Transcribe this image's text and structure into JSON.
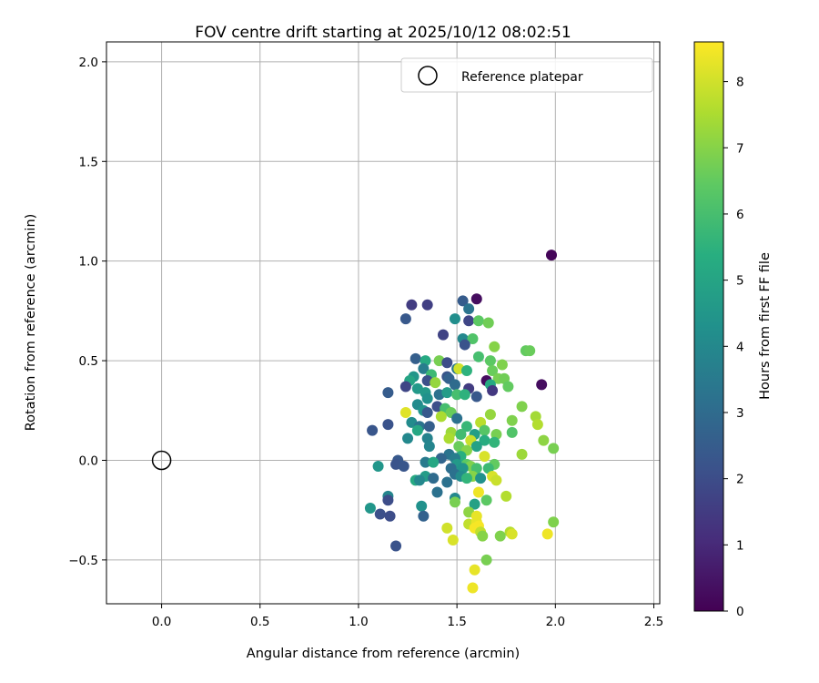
{
  "chart_data": {
    "type": "scatter",
    "title": "FOV centre drift starting at 2025/10/12 08:02:51",
    "xlabel": "Angular distance from reference (arcmin)",
    "ylabel": "Rotation from reference (arcmin)",
    "xlim": [
      -0.28,
      2.53
    ],
    "ylim": [
      -0.72,
      2.1
    ],
    "xticks": [
      0.0,
      0.5,
      1.0,
      1.5,
      2.0,
      2.5
    ],
    "xtick_labels": [
      "0.0",
      "0.5",
      "1.0",
      "1.5",
      "2.0",
      "2.5"
    ],
    "yticks": [
      -0.5,
      0.0,
      0.5,
      1.0,
      1.5,
      2.0
    ],
    "ytick_labels": [
      "−0.5",
      "0.0",
      "0.5",
      "1.0",
      "1.5",
      "2.0"
    ],
    "grid": true,
    "legend": {
      "position": "top-right",
      "entries": [
        "Reference platepar"
      ]
    },
    "reference_point": {
      "x": 0.0,
      "y": 0.0,
      "label": "Reference platepar"
    },
    "colorbar": {
      "label": "Hours from first FF file",
      "colormap": "viridis",
      "range": [
        0,
        8.6
      ],
      "ticks": [
        0,
        1,
        2,
        3,
        4,
        5,
        6,
        7,
        8
      ],
      "tick_labels": [
        "0",
        "1",
        "2",
        "3",
        "4",
        "5",
        "6",
        "7",
        "8"
      ]
    },
    "points": [
      {
        "x": 1.98,
        "y": 1.03,
        "h": 0.1
      },
      {
        "x": 1.6,
        "y": 0.81,
        "h": 0.3
      },
      {
        "x": 1.53,
        "y": 0.8,
        "h": 2.5
      },
      {
        "x": 1.27,
        "y": 0.78,
        "h": 1.5
      },
      {
        "x": 1.35,
        "y": 0.78,
        "h": 1.6
      },
      {
        "x": 1.56,
        "y": 0.76,
        "h": 3.3
      },
      {
        "x": 1.24,
        "y": 0.71,
        "h": 2.4
      },
      {
        "x": 1.49,
        "y": 0.71,
        "h": 4.2
      },
      {
        "x": 1.56,
        "y": 0.7,
        "h": 1.8
      },
      {
        "x": 1.61,
        "y": 0.7,
        "h": 6.4
      },
      {
        "x": 1.66,
        "y": 0.69,
        "h": 6.7
      },
      {
        "x": 1.43,
        "y": 0.63,
        "h": 1.7
      },
      {
        "x": 1.53,
        "y": 0.61,
        "h": 4.0
      },
      {
        "x": 1.58,
        "y": 0.61,
        "h": 6.2
      },
      {
        "x": 1.54,
        "y": 0.58,
        "h": 2.2
      },
      {
        "x": 1.69,
        "y": 0.57,
        "h": 7.0
      },
      {
        "x": 1.85,
        "y": 0.55,
        "h": 6.5
      },
      {
        "x": 1.87,
        "y": 0.55,
        "h": 6.6
      },
      {
        "x": 1.61,
        "y": 0.52,
        "h": 6.0
      },
      {
        "x": 1.29,
        "y": 0.51,
        "h": 2.6
      },
      {
        "x": 1.34,
        "y": 0.5,
        "h": 5.2
      },
      {
        "x": 1.41,
        "y": 0.5,
        "h": 6.8
      },
      {
        "x": 1.67,
        "y": 0.5,
        "h": 6.4
      },
      {
        "x": 1.45,
        "y": 0.49,
        "h": 2.0
      },
      {
        "x": 1.73,
        "y": 0.48,
        "h": 6.9
      },
      {
        "x": 1.33,
        "y": 0.46,
        "h": 3.6
      },
      {
        "x": 1.5,
        "y": 0.46,
        "h": 3.4
      },
      {
        "x": 1.51,
        "y": 0.46,
        "h": 8.0
      },
      {
        "x": 1.55,
        "y": 0.45,
        "h": 5.5
      },
      {
        "x": 1.68,
        "y": 0.45,
        "h": 6.6
      },
      {
        "x": 1.37,
        "y": 0.43,
        "h": 5.8
      },
      {
        "x": 1.45,
        "y": 0.42,
        "h": 2.3
      },
      {
        "x": 1.28,
        "y": 0.42,
        "h": 4.5
      },
      {
        "x": 1.26,
        "y": 0.4,
        "h": 5.0
      },
      {
        "x": 1.35,
        "y": 0.4,
        "h": 2.1
      },
      {
        "x": 1.46,
        "y": 0.41,
        "h": 2.7
      },
      {
        "x": 1.65,
        "y": 0.4,
        "h": 0.3
      },
      {
        "x": 1.71,
        "y": 0.41,
        "h": 6.8
      },
      {
        "x": 1.74,
        "y": 0.41,
        "h": 6.7
      },
      {
        "x": 1.39,
        "y": 0.39,
        "h": 7.2
      },
      {
        "x": 1.49,
        "y": 0.38,
        "h": 3.0
      },
      {
        "x": 1.67,
        "y": 0.38,
        "h": 5.2
      },
      {
        "x": 1.76,
        "y": 0.37,
        "h": 6.5
      },
      {
        "x": 1.93,
        "y": 0.38,
        "h": 0.3
      },
      {
        "x": 1.24,
        "y": 0.37,
        "h": 1.8
      },
      {
        "x": 1.3,
        "y": 0.36,
        "h": 4.6
      },
      {
        "x": 1.56,
        "y": 0.36,
        "h": 1.5
      },
      {
        "x": 1.68,
        "y": 0.35,
        "h": 1.4
      },
      {
        "x": 1.15,
        "y": 0.34,
        "h": 2.5
      },
      {
        "x": 1.34,
        "y": 0.34,
        "h": 4.6
      },
      {
        "x": 1.41,
        "y": 0.33,
        "h": 3.2
      },
      {
        "x": 1.45,
        "y": 0.34,
        "h": 4.7
      },
      {
        "x": 1.5,
        "y": 0.33,
        "h": 6.0
      },
      {
        "x": 1.54,
        "y": 0.33,
        "h": 5.5
      },
      {
        "x": 1.6,
        "y": 0.32,
        "h": 2.4
      },
      {
        "x": 1.35,
        "y": 0.31,
        "h": 4.3
      },
      {
        "x": 1.3,
        "y": 0.28,
        "h": 4.1
      },
      {
        "x": 1.4,
        "y": 0.27,
        "h": 2.1
      },
      {
        "x": 1.83,
        "y": 0.27,
        "h": 6.9
      },
      {
        "x": 1.33,
        "y": 0.25,
        "h": 4.4
      },
      {
        "x": 1.44,
        "y": 0.26,
        "h": 6.0
      },
      {
        "x": 1.24,
        "y": 0.24,
        "h": 8.2
      },
      {
        "x": 1.35,
        "y": 0.24,
        "h": 2.4
      },
      {
        "x": 1.47,
        "y": 0.24,
        "h": 6.6
      },
      {
        "x": 1.42,
        "y": 0.22,
        "h": 7.5
      },
      {
        "x": 1.67,
        "y": 0.23,
        "h": 7.2
      },
      {
        "x": 1.9,
        "y": 0.22,
        "h": 7.4
      },
      {
        "x": 1.5,
        "y": 0.21,
        "h": 3.2
      },
      {
        "x": 1.78,
        "y": 0.2,
        "h": 6.9
      },
      {
        "x": 1.27,
        "y": 0.19,
        "h": 4.1
      },
      {
        "x": 1.62,
        "y": 0.19,
        "h": 7.7
      },
      {
        "x": 1.91,
        "y": 0.18,
        "h": 7.6
      },
      {
        "x": 1.15,
        "y": 0.18,
        "h": 2.2
      },
      {
        "x": 1.31,
        "y": 0.17,
        "h": 3.3
      },
      {
        "x": 1.36,
        "y": 0.17,
        "h": 2.6
      },
      {
        "x": 1.55,
        "y": 0.17,
        "h": 5.7
      },
      {
        "x": 1.64,
        "y": 0.15,
        "h": 6.3
      },
      {
        "x": 1.07,
        "y": 0.15,
        "h": 2.3
      },
      {
        "x": 1.3,
        "y": 0.15,
        "h": 5.1
      },
      {
        "x": 1.47,
        "y": 0.14,
        "h": 7.3
      },
      {
        "x": 1.52,
        "y": 0.13,
        "h": 5.9
      },
      {
        "x": 1.59,
        "y": 0.13,
        "h": 4.8
      },
      {
        "x": 1.7,
        "y": 0.13,
        "h": 6.8
      },
      {
        "x": 1.78,
        "y": 0.14,
        "h": 6.2
      },
      {
        "x": 1.25,
        "y": 0.11,
        "h": 4.0
      },
      {
        "x": 1.35,
        "y": 0.11,
        "h": 3.8
      },
      {
        "x": 1.46,
        "y": 0.11,
        "h": 7.5
      },
      {
        "x": 1.57,
        "y": 0.1,
        "h": 7.9
      },
      {
        "x": 1.64,
        "y": 0.1,
        "h": 5.3
      },
      {
        "x": 1.94,
        "y": 0.1,
        "h": 7.1
      },
      {
        "x": 1.69,
        "y": 0.09,
        "h": 5.6
      },
      {
        "x": 1.36,
        "y": 0.07,
        "h": 3.9
      },
      {
        "x": 1.51,
        "y": 0.07,
        "h": 6.6
      },
      {
        "x": 1.6,
        "y": 0.07,
        "h": 4.9
      },
      {
        "x": 1.99,
        "y": 0.06,
        "h": 6.8
      },
      {
        "x": 1.55,
        "y": 0.05,
        "h": 7.0
      },
      {
        "x": 1.46,
        "y": 0.03,
        "h": 3.3
      },
      {
        "x": 1.64,
        "y": 0.02,
        "h": 8.1
      },
      {
        "x": 1.52,
        "y": 0.02,
        "h": 5.4
      },
      {
        "x": 1.42,
        "y": 0.01,
        "h": 2.8
      },
      {
        "x": 1.49,
        "y": 0.01,
        "h": 3.6
      },
      {
        "x": 1.83,
        "y": 0.03,
        "h": 7.3
      },
      {
        "x": 1.2,
        "y": 0.0,
        "h": 2.4
      },
      {
        "x": 1.34,
        "y": -0.01,
        "h": 3.5
      },
      {
        "x": 1.38,
        "y": -0.01,
        "h": 5.1
      },
      {
        "x": 1.19,
        "y": -0.02,
        "h": 2.2
      },
      {
        "x": 1.5,
        "y": -0.02,
        "h": 4.6
      },
      {
        "x": 1.55,
        "y": -0.02,
        "h": 6.4
      },
      {
        "x": 1.57,
        "y": -0.03,
        "h": 6.9
      },
      {
        "x": 1.69,
        "y": -0.02,
        "h": 6.5
      },
      {
        "x": 1.1,
        "y": -0.03,
        "h": 4.5
      },
      {
        "x": 1.23,
        "y": -0.03,
        "h": 2.3
      },
      {
        "x": 1.47,
        "y": -0.04,
        "h": 3.1
      },
      {
        "x": 1.53,
        "y": -0.04,
        "h": 4.4
      },
      {
        "x": 1.6,
        "y": -0.04,
        "h": 6.0
      },
      {
        "x": 1.66,
        "y": -0.04,
        "h": 5.8
      },
      {
        "x": 1.49,
        "y": -0.07,
        "h": 3.2
      },
      {
        "x": 1.52,
        "y": -0.08,
        "h": 4.1
      },
      {
        "x": 1.58,
        "y": -0.08,
        "h": 7.0
      },
      {
        "x": 1.68,
        "y": -0.08,
        "h": 8.1
      },
      {
        "x": 1.34,
        "y": -0.08,
        "h": 4.7
      },
      {
        "x": 1.29,
        "y": -0.1,
        "h": 5.2
      },
      {
        "x": 1.31,
        "y": -0.1,
        "h": 4.0
      },
      {
        "x": 1.38,
        "y": -0.09,
        "h": 3.0
      },
      {
        "x": 1.55,
        "y": -0.09,
        "h": 5.6
      },
      {
        "x": 1.62,
        "y": -0.09,
        "h": 4.3
      },
      {
        "x": 1.7,
        "y": -0.1,
        "h": 7.9
      },
      {
        "x": 1.45,
        "y": -0.11,
        "h": 3.2
      },
      {
        "x": 1.61,
        "y": -0.16,
        "h": 8.4
      },
      {
        "x": 1.4,
        "y": -0.16,
        "h": 3.2
      },
      {
        "x": 1.49,
        "y": -0.19,
        "h": 4.0
      },
      {
        "x": 1.75,
        "y": -0.18,
        "h": 7.6
      },
      {
        "x": 1.15,
        "y": -0.18,
        "h": 3.9
      },
      {
        "x": 1.15,
        "y": -0.2,
        "h": 2.0
      },
      {
        "x": 1.49,
        "y": -0.21,
        "h": 6.8
      },
      {
        "x": 1.59,
        "y": -0.22,
        "h": 4.9
      },
      {
        "x": 1.65,
        "y": -0.2,
        "h": 6.4
      },
      {
        "x": 1.32,
        "y": -0.23,
        "h": 4.3
      },
      {
        "x": 1.06,
        "y": -0.24,
        "h": 4.5
      },
      {
        "x": 1.56,
        "y": -0.26,
        "h": 7.1
      },
      {
        "x": 1.11,
        "y": -0.27,
        "h": 2.1
      },
      {
        "x": 1.16,
        "y": -0.28,
        "h": 2.0
      },
      {
        "x": 1.33,
        "y": -0.28,
        "h": 2.7
      },
      {
        "x": 1.6,
        "y": -0.28,
        "h": 8.3
      },
      {
        "x": 1.56,
        "y": -0.32,
        "h": 7.8
      },
      {
        "x": 1.6,
        "y": -0.31,
        "h": 8.3
      },
      {
        "x": 1.61,
        "y": -0.33,
        "h": 8.5
      },
      {
        "x": 1.59,
        "y": -0.34,
        "h": 8.5
      },
      {
        "x": 1.99,
        "y": -0.31,
        "h": 6.9
      },
      {
        "x": 1.45,
        "y": -0.34,
        "h": 8.0
      },
      {
        "x": 1.62,
        "y": -0.36,
        "h": 7.8
      },
      {
        "x": 1.77,
        "y": -0.36,
        "h": 7.6
      },
      {
        "x": 1.78,
        "y": -0.37,
        "h": 8.1
      },
      {
        "x": 1.96,
        "y": -0.37,
        "h": 8.4
      },
      {
        "x": 1.63,
        "y": -0.38,
        "h": 7.0
      },
      {
        "x": 1.72,
        "y": -0.38,
        "h": 6.9
      },
      {
        "x": 1.48,
        "y": -0.4,
        "h": 8.1
      },
      {
        "x": 1.19,
        "y": -0.43,
        "h": 2.2
      },
      {
        "x": 1.65,
        "y": -0.5,
        "h": 6.8
      },
      {
        "x": 1.59,
        "y": -0.55,
        "h": 8.3
      },
      {
        "x": 1.58,
        "y": -0.64,
        "h": 8.4
      }
    ]
  }
}
